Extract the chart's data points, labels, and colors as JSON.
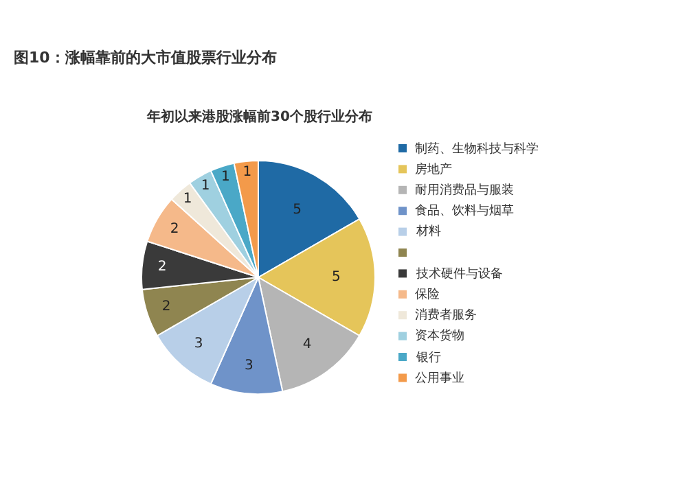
{
  "chart_data": {
    "type": "pie",
    "title": "图10：涨幅靠前的大市值股票行业分布",
    "subtitle": "年初以来港股涨幅前30个股行业分布",
    "categories": [
      "制药、生物科技与科学",
      "房地产",
      "耐用消费品与服装",
      "食品、饮料与烟草",
      "材料",
      null,
      "技术硬件与设备",
      "保险",
      "消费者服务",
      "资本货物",
      "银行",
      "公用事业"
    ],
    "values": [
      5,
      5,
      4,
      3,
      3,
      2,
      2,
      2,
      1,
      1,
      1,
      1
    ],
    "colors": [
      "#1f6aa5",
      "#e5c55a",
      "#b5b5b5",
      "#6f93c9",
      "#b8cfe8",
      "#8f8550",
      "#3a3a3a",
      "#f5b98a",
      "#efe8da",
      "#9fd0e0",
      "#4aa8c7",
      "#f39a4a"
    ],
    "data_labels": true,
    "legend": "right"
  }
}
